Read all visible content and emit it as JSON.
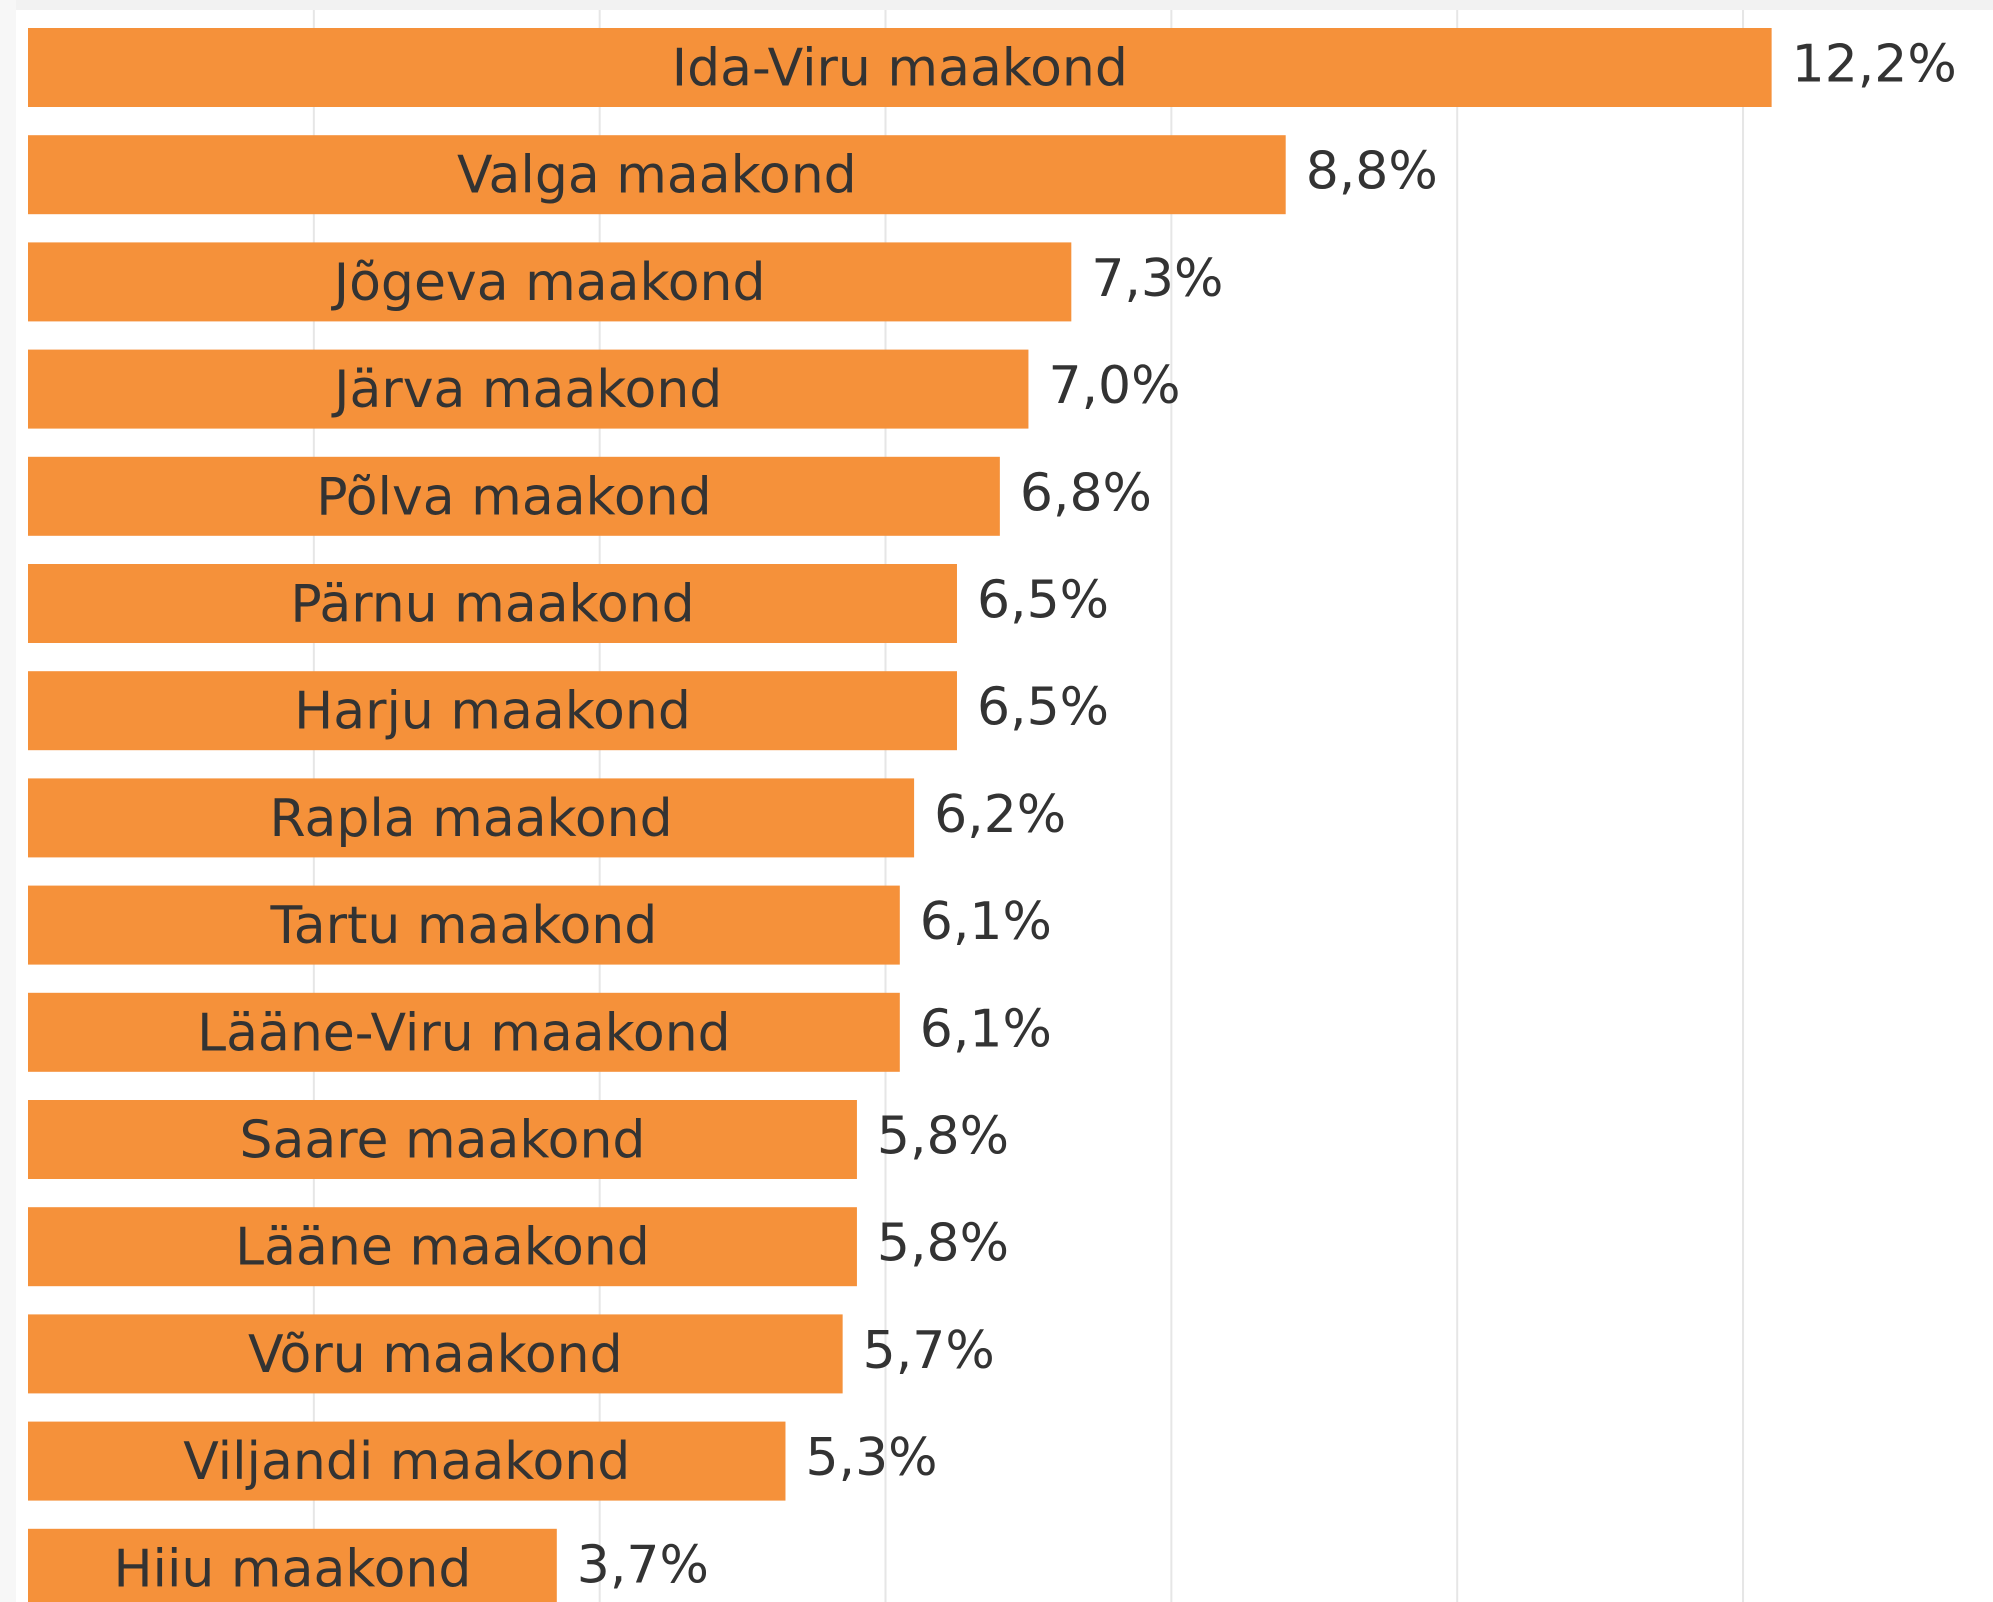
{
  "chart_data": {
    "type": "hbar",
    "categories": [
      "Ida-Viru maakond",
      "Valga maakond",
      "Jõgeva maakond",
      "Järva maakond",
      "Põlva maakond",
      "Pärnu maakond",
      "Harju maakond",
      "Rapla maakond",
      "Tartu maakond",
      "Lääne-Viru maakond",
      "Saare maakond",
      "Lääne maakond",
      "Võru maakond",
      "Viljandi maakond",
      "Hiiu maakond"
    ],
    "values": [
      12.2,
      8.8,
      7.3,
      7.0,
      6.8,
      6.5,
      6.5,
      6.2,
      6.1,
      6.1,
      5.8,
      5.8,
      5.7,
      5.3,
      3.7
    ],
    "value_labels": [
      "12,2%",
      "8,8%",
      "7,3%",
      "7,0%",
      "6,8%",
      "6,5%",
      "6,5%",
      "6,2%",
      "6,1%",
      "6,1%",
      "5,8%",
      "5,8%",
      "5,7%",
      "5,3%",
      "3,7%"
    ],
    "color": "#f5913a",
    "xlim": [
      0,
      13.7
    ],
    "xticks": [
      2,
      4,
      6,
      8,
      10,
      12
    ],
    "grid": true
  }
}
